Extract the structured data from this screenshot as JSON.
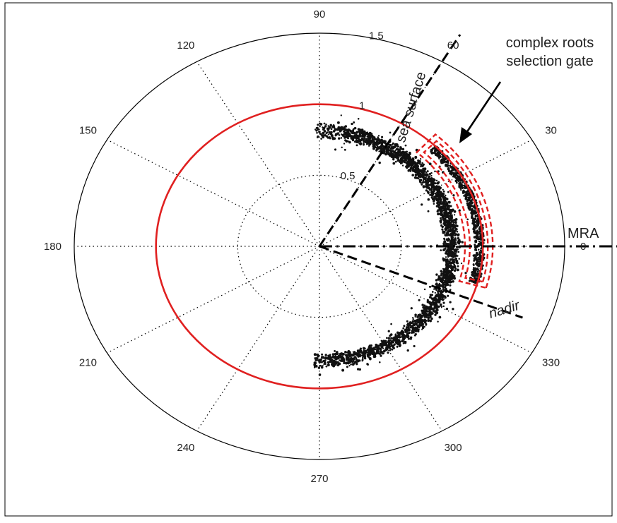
{
  "chart_data": {
    "type": "scatter",
    "coordinate_system": "polar",
    "angle_unit": "degrees",
    "angle_ticks": [
      "0",
      "30",
      "60",
      "90",
      "120",
      "150",
      "180",
      "210",
      "240",
      "270",
      "300",
      "330"
    ],
    "radius_ticks": [
      {
        "r": 0.5,
        "label": "0.5"
      },
      {
        "r": 1.0,
        "label": "1"
      },
      {
        "r": 1.5,
        "label": "1.5"
      }
    ],
    "rlim": [
      0,
      1.5
    ],
    "grid": true,
    "colors": {
      "circle": "#e02020",
      "gate": "#e02020",
      "points": "#111111",
      "axes": "#000000"
    },
    "reference_circle": {
      "radius": 1.0,
      "color": "#e02020"
    },
    "lines": [
      {
        "label": "sea surface",
        "angle": 60,
        "style": "dashed"
      },
      {
        "label": "MRA",
        "angle": 0,
        "style": "dash-dot"
      },
      {
        "label": "nadir",
        "angle": -22,
        "style": "dashed"
      }
    ],
    "annotations": [
      {
        "text_lines": [
          "complex roots",
          "selection gate"
        ],
        "arrow": true
      }
    ],
    "gate": {
      "r_range": [
        0.89,
        1.06
      ],
      "theta_range": [
        -16,
        48
      ],
      "color": "#e02020"
    },
    "series": [
      {
        "r_range": [
          0.76,
          0.86
        ],
        "theta_range": [
          -92,
          92
        ]
      },
      {
        "r_range": [
          0.78,
          0.84
        ],
        "theta_range": [
          -88,
          80
        ]
      },
      {
        "r_range": [
          0.95,
          1.01
        ],
        "theta_range": [
          -15,
          45
        ]
      }
    ]
  }
}
